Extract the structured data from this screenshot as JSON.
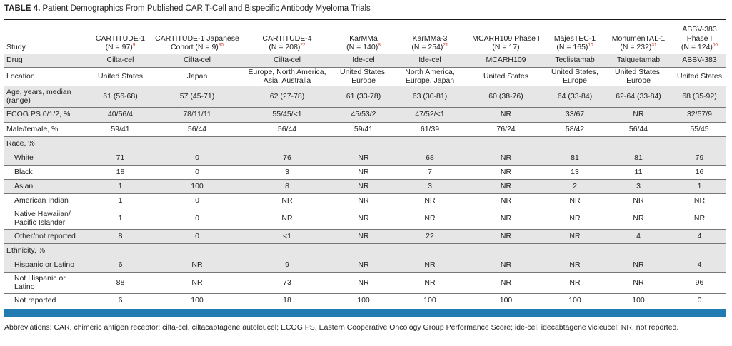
{
  "title": {
    "label": "TABLE 4.",
    "text": "Patient Demographics From Published CAR T-Cell and Bispecific Antibody Myeloma Trials"
  },
  "header": {
    "study": "Study",
    "columns": [
      {
        "line1": "CARTITUDE-1",
        "line2": "(N = 97)",
        "ref": "9"
      },
      {
        "line1": "CARTITUDE-1 Japanese",
        "line2": "Cohort (N = 9)",
        "ref": "80"
      },
      {
        "line1": "CARTITUDE-4",
        "line2": "(N = 208)",
        "ref": "22"
      },
      {
        "line1": "KarMMa",
        "line2": "(N = 140)",
        "ref": "8"
      },
      {
        "line1": "KarMMa-3",
        "line2": "(N = 254)",
        "ref": "21"
      },
      {
        "line1": "MCARH109 Phase I",
        "line2": "(N = 17)",
        "ref": ""
      },
      {
        "line1": "MajesTEC-1",
        "line2": "(N = 165)",
        "ref": "10"
      },
      {
        "line1": "MonumenTAL-1",
        "line2": "(N = 232)",
        "ref": "31"
      },
      {
        "line1": "ABBV-383 Phase I",
        "line2": "(N = 124)",
        "ref": "50"
      }
    ]
  },
  "rows": [
    {
      "label": "Drug",
      "cells": [
        "Cilta-cel",
        "Cilta-cel",
        "Cilta-cel",
        "Ide-cel",
        "Ide-cel",
        "MCARH109",
        "Teclistamab",
        "Talquetamab",
        "ABBV-383"
      ]
    },
    {
      "label": "Location",
      "cells": [
        "United States",
        "Japan",
        "Europe, North America, Asia, Australia",
        "United States, Europe",
        "North America, Europe, Japan",
        "United States",
        "United States, Europe",
        "United States, Europe",
        "United States"
      ]
    },
    {
      "label": "Age, years, median (range)",
      "cells": [
        "61 (56-68)",
        "57 (45-71)",
        "62 (27-78)",
        "61 (33-78)",
        "63 (30-81)",
        "60 (38-76)",
        "64 (33-84)",
        "62-64 (33-84)",
        "68 (35-92)"
      ]
    },
    {
      "label": "ECOG PS 0/1/2, %",
      "cells": [
        "40/56/4",
        "78/11/11",
        "55/45/<1",
        "45/53/2",
        "47/52/<1",
        "NR",
        "33/67",
        "NR",
        "32/57/9"
      ]
    },
    {
      "label": "Male/female, %",
      "cells": [
        "59/41",
        "56/44",
        "56/44",
        "59/41",
        "61/39",
        "76/24",
        "58/42",
        "56/44",
        "55/45"
      ]
    },
    {
      "label": "Race, %",
      "cells": [
        "",
        "",
        "",
        "",
        "",
        "",
        "",
        "",
        ""
      ]
    },
    {
      "label": "White",
      "cells": [
        "71",
        "0",
        "76",
        "NR",
        "68",
        "NR",
        "81",
        "81",
        "79"
      ]
    },
    {
      "label": "Black",
      "cells": [
        "18",
        "0",
        "3",
        "NR",
        "7",
        "NR",
        "13",
        "11",
        "16"
      ]
    },
    {
      "label": "Asian",
      "cells": [
        "1",
        "100",
        "8",
        "NR",
        "3",
        "NR",
        "2",
        "3",
        "1"
      ]
    },
    {
      "label": "American Indian",
      "cells": [
        "1",
        "0",
        "NR",
        "NR",
        "NR",
        "NR",
        "NR",
        "NR",
        "NR"
      ]
    },
    {
      "label": "Native Hawaiian/ Pacific Islander",
      "cells": [
        "1",
        "0",
        "NR",
        "NR",
        "NR",
        "NR",
        "NR",
        "NR",
        "NR"
      ]
    },
    {
      "label": "Other/not reported",
      "cells": [
        "8",
        "0",
        "<1",
        "NR",
        "22",
        "NR",
        "NR",
        "4",
        "4"
      ]
    },
    {
      "label": "Ethnicity, %",
      "cells": [
        "",
        "",
        "",
        "",
        "",
        "",
        "",
        "",
        ""
      ]
    },
    {
      "label": "Hispanic or Latino",
      "cells": [
        "6",
        "NR",
        "9",
        "NR",
        "NR",
        "NR",
        "NR",
        "NR",
        "4"
      ]
    },
    {
      "label": "Not Hispanic or Latino",
      "cells": [
        "88",
        "NR",
        "73",
        "NR",
        "NR",
        "NR",
        "NR",
        "NR",
        "96"
      ]
    },
    {
      "label": "Not reported",
      "cells": [
        "6",
        "100",
        "18",
        "100",
        "100",
        "100",
        "100",
        "100",
        "0"
      ]
    }
  ],
  "footnote": "Abbreviations: CAR, chimeric antigen receptor; cilta-cel, ciltacabtagene autoleucel; ECOG PS, Eastern Cooperative Oncology Group Performance Score; ide-cel, idecabtagene vicleucel; NR, not reported."
}
